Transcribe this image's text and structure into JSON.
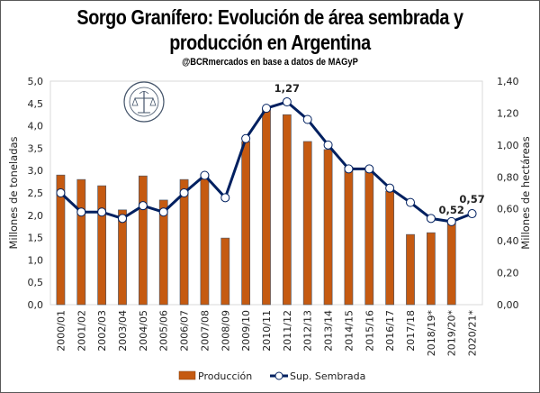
{
  "chart_data": {
    "type": "bar+line",
    "title": "Sorgo Granífero: Evolución de área sembrada y",
    "title_line2": "producción en Argentina",
    "subtitle": "@BCRmercados en base a datos de MAGyP",
    "categories": [
      "2000/01",
      "2001/02",
      "2002/03",
      "2003/04",
      "2004/05",
      "2005/06",
      "2006/07",
      "2007/08",
      "2008/09",
      "2009/10",
      "2010/11",
      "2011/12",
      "2012/13",
      "2013/14",
      "2014/15",
      "2015/16",
      "2016/17",
      "2017/18",
      "2018/19*",
      "2019/20*",
      "2020/21*"
    ],
    "series": [
      {
        "name": "Producción",
        "type": "bar",
        "axis": "left",
        "color": "#C55A11",
        "values": [
          2.9,
          2.8,
          2.66,
          2.12,
          2.88,
          2.34,
          2.8,
          2.92,
          1.49,
          3.65,
          4.37,
          4.25,
          3.65,
          3.47,
          3.08,
          3.0,
          2.54,
          1.57,
          1.61,
          1.89,
          null
        ]
      },
      {
        "name": "Sup. Sembrada",
        "type": "line",
        "axis": "right",
        "color": "#002060",
        "values": [
          0.7,
          0.58,
          0.58,
          0.54,
          0.62,
          0.58,
          0.7,
          0.81,
          0.67,
          1.04,
          1.23,
          1.27,
          1.16,
          1.0,
          0.85,
          0.85,
          0.73,
          0.64,
          0.54,
          0.52,
          0.57
        ]
      }
    ],
    "data_labels": [
      {
        "category": "2011/12",
        "text": "1,27"
      },
      {
        "category": "2019/20*",
        "text": "0,52"
      },
      {
        "category": "2020/21*",
        "text": "0,57"
      }
    ],
    "ylabel": "Millones de toneladas",
    "ylim": [
      0,
      5
    ],
    "yticks": [
      "0,0",
      "0,5",
      "1,0",
      "1,5",
      "2,0",
      "2,5",
      "3,0",
      "3,5",
      "4,0",
      "4,5",
      "5,0"
    ],
    "y2label": "Millones de hectáreas",
    "y2lim": [
      0,
      1.4
    ],
    "y2ticks": [
      "0,00",
      "0,20",
      "0,40",
      "0,60",
      "0,80",
      "1,00",
      "1,20",
      "1,40"
    ],
    "grid": false,
    "legend_position": "bottom",
    "logo": "Bolsa de Comercio de Rosario"
  }
}
